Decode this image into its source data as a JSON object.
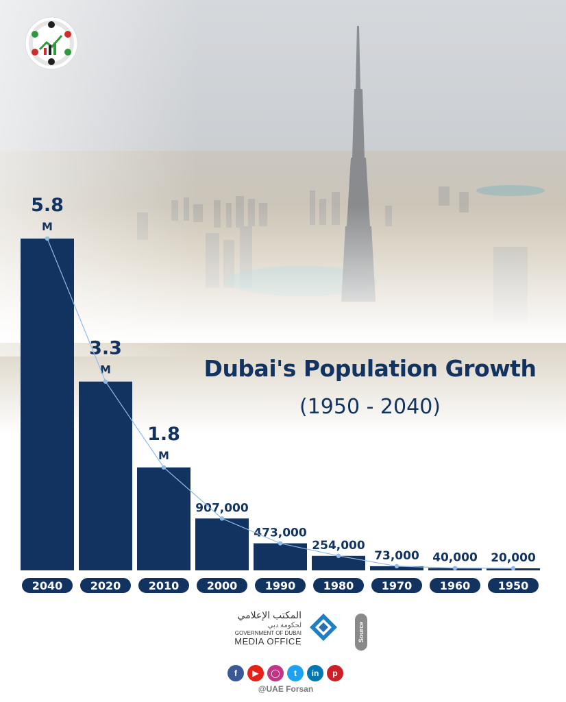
{
  "chart_data": {
    "type": "bar",
    "title": "Dubai's Population Growth",
    "subtitle": "(1950 - 2040)",
    "categories": [
      "2040",
      "2020",
      "2010",
      "2000",
      "1990",
      "1980",
      "1970",
      "1960",
      "1950"
    ],
    "values": [
      5800000,
      3300000,
      1800000,
      907000,
      473000,
      254000,
      73000,
      40000,
      20000
    ],
    "value_labels": [
      {
        "value": "5.8",
        "unit": "M"
      },
      {
        "value": "3.3",
        "unit": "M"
      },
      {
        "value": "1.8",
        "unit": "M"
      },
      {
        "value": "907,000",
        "unit": ""
      },
      {
        "value": "473,000",
        "unit": ""
      },
      {
        "value": "254,000",
        "unit": ""
      },
      {
        "value": "73,000",
        "unit": ""
      },
      {
        "value": "40,000",
        "unit": ""
      },
      {
        "value": "20,000",
        "unit": ""
      }
    ],
    "ylim": [
      0,
      5800000
    ],
    "trend_line": true,
    "colors": {
      "bar": "#12335f",
      "line": "#8fbbe8",
      "title": "#12335f"
    }
  },
  "footer": {
    "media_office_ar": "المكتب الإعلامي",
    "media_office_ar2": "لحكومة دبي",
    "government": "GOVERNMENT OF DUBAI",
    "media_office": "MEDIA OFFICE",
    "source_label": "Source",
    "handle": "@UAE Forsan"
  },
  "social_icons": [
    "facebook-icon",
    "youtube-icon",
    "instagram-icon",
    "twitter-icon",
    "linkedin-icon",
    "pinterest-icon"
  ]
}
